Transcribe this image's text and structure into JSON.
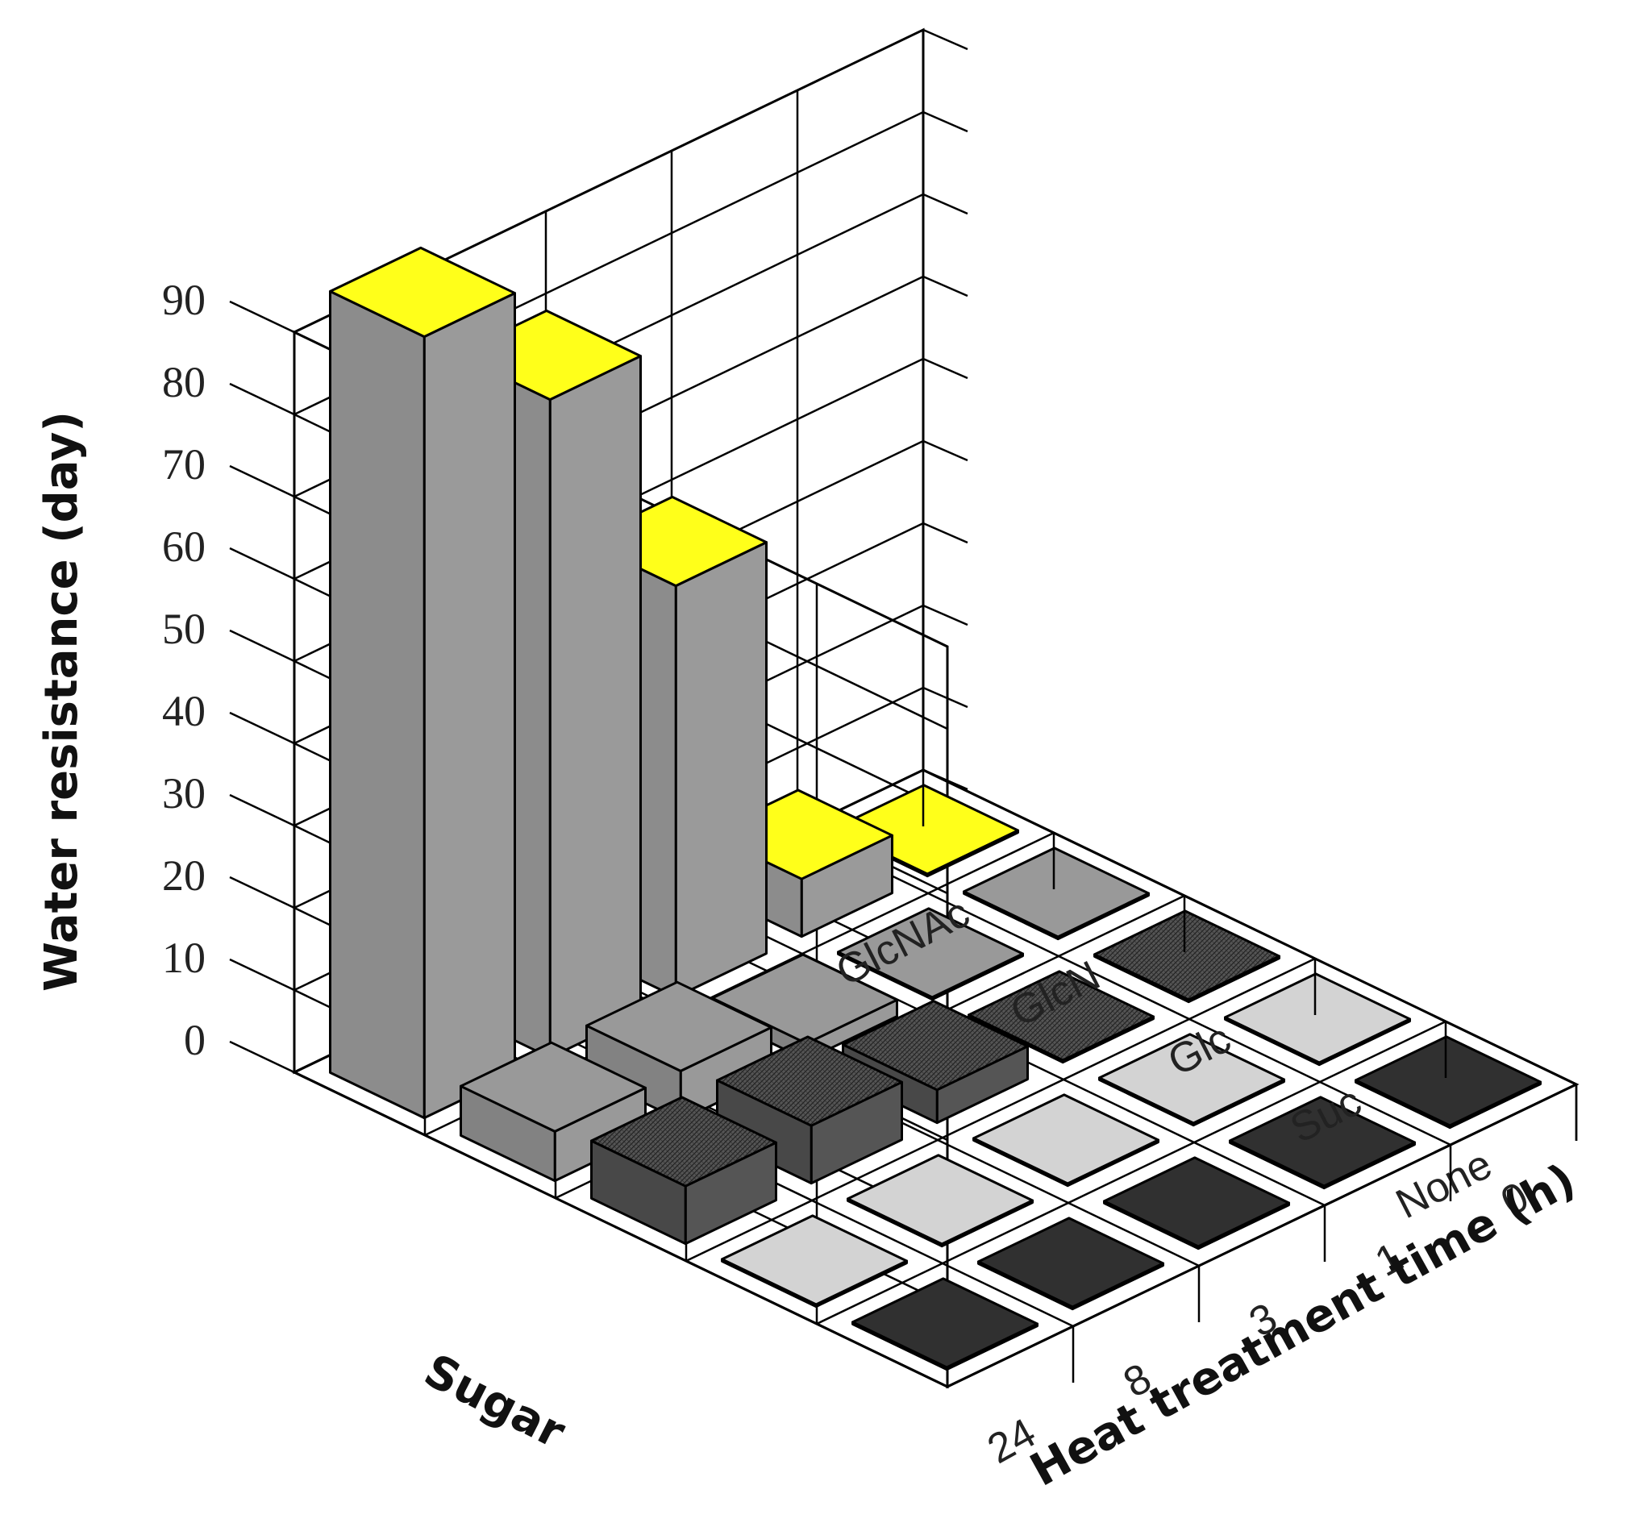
{
  "chart_data": {
    "type": "bar",
    "subtype": "3d-bar",
    "title": "",
    "zlabel": "Water resistance (day)",
    "xlabel": "Sugar",
    "ylabel": "Heat treatment time (h)",
    "sugar_categories": [
      "GlcNAc",
      "GlcN",
      "Glc",
      "Suc",
      "None"
    ],
    "time_categories": [
      "0",
      "1",
      "3",
      "8",
      "24"
    ],
    "zlim": [
      0,
      90
    ],
    "z_ticks": [
      "0",
      "10",
      "20",
      "30",
      "40",
      "50",
      "60",
      "70",
      "80",
      "90"
    ],
    "grid": true,
    "series": [
      {
        "name": "GlcNAc",
        "color": "#ffff1a",
        "values": [
          0,
          7,
          50,
          80,
          95
        ]
      },
      {
        "name": "GlcN",
        "color": "#999999",
        "values": [
          0,
          0,
          2,
          6,
          6
        ]
      },
      {
        "name": "Glc",
        "color": "#555555",
        "values": [
          0,
          0,
          4,
          7,
          7
        ]
      },
      {
        "name": "Suc",
        "color": "#d3d3d3",
        "values": [
          0,
          0,
          0,
          0,
          0
        ]
      },
      {
        "name": "None",
        "color": "#303030",
        "values": [
          0,
          0,
          0,
          0,
          0
        ]
      }
    ]
  }
}
